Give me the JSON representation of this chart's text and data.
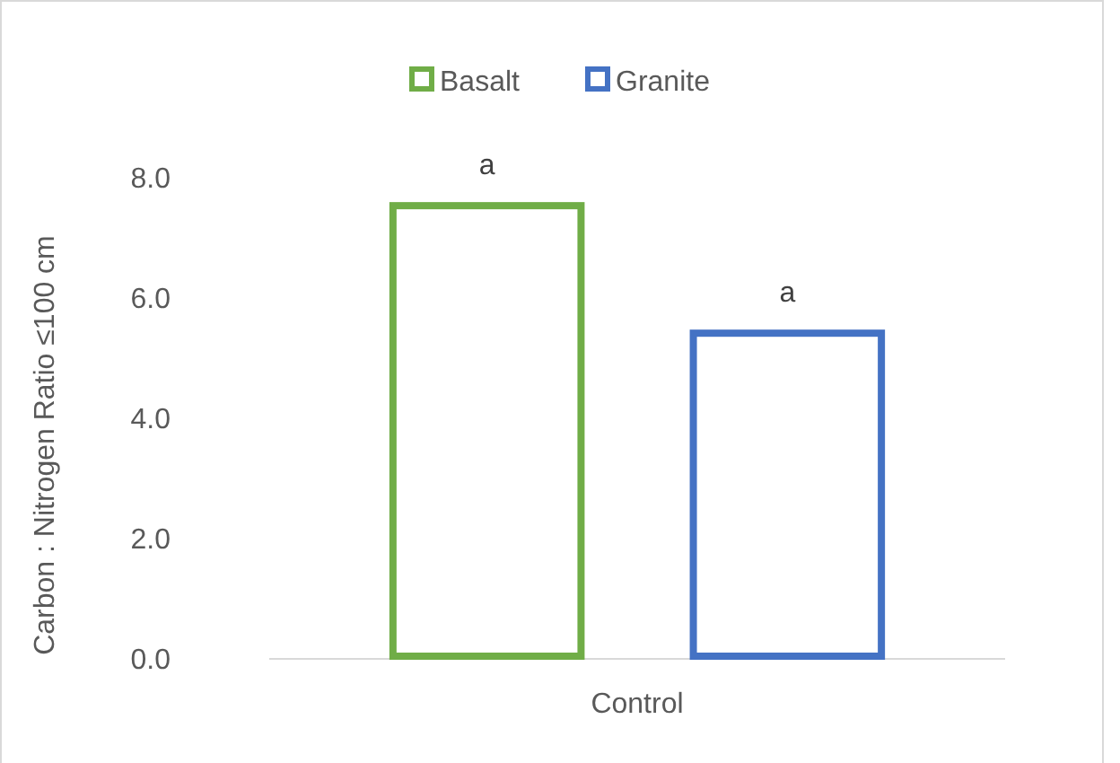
{
  "chart_data": {
    "type": "bar",
    "ylabel": "Carbon : Nitrogen Ratio ≤100 cm",
    "categories": [
      "Control"
    ],
    "ylim": [
      0,
      8
    ],
    "yticks": [
      {
        "value": 0,
        "label": "0.0"
      },
      {
        "value": 2,
        "label": "2.0"
      },
      {
        "value": 4,
        "label": "4.0"
      },
      {
        "value": 6,
        "label": "6.0"
      },
      {
        "value": 8,
        "label": "8.0"
      }
    ],
    "legend": "top",
    "grid": false,
    "series": [
      {
        "name": "Basalt",
        "color": "#70ad47",
        "values": [
          7.58
        ],
        "value_labels": [
          "a"
        ]
      },
      {
        "name": "Granite",
        "color": "#4472c4",
        "values": [
          5.46
        ],
        "value_labels": [
          "a"
        ]
      }
    ]
  }
}
